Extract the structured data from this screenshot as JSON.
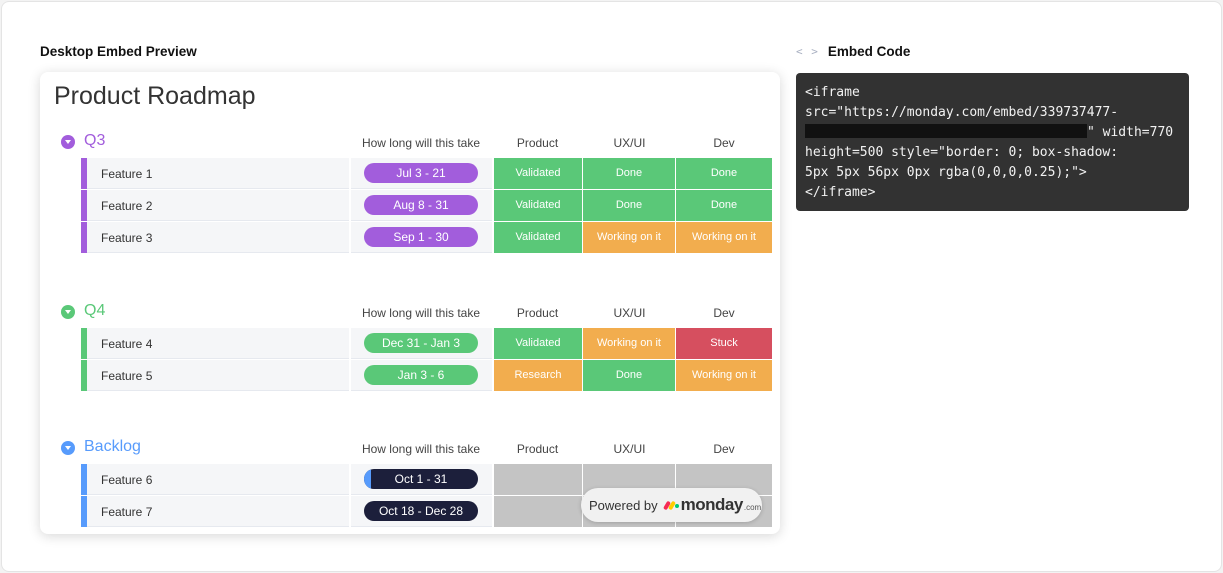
{
  "preview_title": "Desktop Embed Preview",
  "embed_title": "Embed Code",
  "embed_icon": "code-brackets-icon",
  "embed_code": {
    "line1": "<iframe",
    "line2": "src=\"https://monday.com/embed/339737477-",
    "line3_end": "\" width=770",
    "line4": "height=500 style=\"border: 0; box-shadow:",
    "line5": "5px 5px 56px 0px rgba(0,0,0,0.25);\">",
    "line6": "</iframe>"
  },
  "board": {
    "title": "Product Roadmap",
    "columns": {
      "time": "How long will this take",
      "product": "Product",
      "ux": "UX/UI",
      "dev": "Dev"
    },
    "colors": {
      "done": "#5ac878",
      "working": "#f2ad4e",
      "stuck": "#d64f5f",
      "empty": "#c4c4c4"
    },
    "groups": [
      {
        "name": "Q3",
        "color": "#a25ddc",
        "rows": [
          {
            "name": "Feature 1",
            "timeline": "Jul 3 - 21",
            "tl_color": "#a25ddc",
            "product": "Validated",
            "ux": "Done",
            "dev": "Done",
            "product_color": "#5ac878",
            "ux_color": "#5ac878",
            "dev_color": "#5ac878"
          },
          {
            "name": "Feature 2",
            "timeline": "Aug 8 - 31",
            "tl_color": "#a25ddc",
            "product": "Validated",
            "ux": "Done",
            "dev": "Done",
            "product_color": "#5ac878",
            "ux_color": "#5ac878",
            "dev_color": "#5ac878"
          },
          {
            "name": "Feature 3",
            "timeline": "Sep 1 - 30",
            "tl_color": "#a25ddc",
            "product": "Validated",
            "ux": "Working on it",
            "dev": "Working on it",
            "product_color": "#5ac878",
            "ux_color": "#f2ad4e",
            "dev_color": "#f2ad4e"
          }
        ]
      },
      {
        "name": "Q4",
        "color": "#5ac878",
        "rows": [
          {
            "name": "Feature 4",
            "timeline": "Dec 31 - Jan 3",
            "tl_color": "#5ac878",
            "product": "Validated",
            "ux": "Working on it",
            "dev": "Stuck",
            "product_color": "#5ac878",
            "ux_color": "#f2ad4e",
            "dev_color": "#d64f5f"
          },
          {
            "name": "Feature 5",
            "timeline": "Jan 3 - 6",
            "tl_color": "#5ac878",
            "product": "Research",
            "ux": "Done",
            "dev": "Working on it",
            "product_color": "#f2ad4e",
            "ux_color": "#5ac878",
            "dev_color": "#f2ad4e"
          }
        ]
      },
      {
        "name": "Backlog",
        "color": "#579bfc",
        "rows": [
          {
            "name": "Feature 6",
            "timeline": "Oct 1 - 31",
            "tl_color": "#1c1f3b",
            "tl_progress": 0.06,
            "tl_progress_color": "#579bfc",
            "product": "",
            "ux": "",
            "dev": "",
            "product_color": "#c4c4c4",
            "ux_color": "#c4c4c4",
            "dev_color": "#c4c4c4"
          },
          {
            "name": "Feature 7",
            "timeline": "Oct 18 - Dec 28",
            "tl_color": "#1c1f3b",
            "product": "",
            "ux": "",
            "dev": "",
            "product_color": "#c4c4c4",
            "ux_color": "#c4c4c4",
            "dev_color": "#c4c4c4"
          }
        ]
      }
    ]
  },
  "powered_by": {
    "label": "Powered by",
    "brand": "monday",
    "suffix": ".com",
    "logo_colors": [
      "#f62b54",
      "#ffcc00",
      "#00ca72"
    ]
  }
}
